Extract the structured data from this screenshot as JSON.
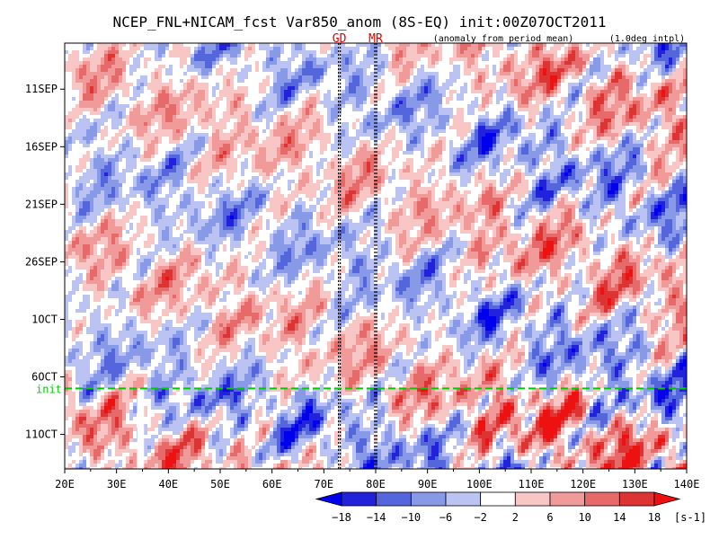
{
  "title": "NCEP_FNL+NICAM_fcst Var850_anom (8S-EQ) init:00Z07OCT2011",
  "subtitle_left": "(anomaly from period mean)",
  "subtitle_right": "(1.0deg intpl)",
  "markers": [
    {
      "label": "GD",
      "lon": 73,
      "color": "#e00000"
    },
    {
      "label": "MR",
      "lon": 80,
      "color": "#e00000"
    }
  ],
  "init_label": "init",
  "init_line_color": "#00cc00",
  "unit_label": "[s-1]",
  "chart_data": {
    "type": "heatmap",
    "title": "NCEP_FNL+NICAM_fcst Var850_anom (8S-EQ) init:00Z07OCT2011",
    "xlabel": "",
    "ylabel": "",
    "x_ticks": [
      "20E",
      "30E",
      "40E",
      "50E",
      "60E",
      "70E",
      "80E",
      "90E",
      "100E",
      "110E",
      "120E",
      "130E",
      "140E"
    ],
    "x_range": [
      20,
      140
    ],
    "y_ticks": [
      "11SEP",
      "16SEP",
      "21SEP",
      "26SEP",
      "1OCT",
      "6OCT",
      "11OCT"
    ],
    "y_tick_days": [
      -26,
      -21,
      -16,
      -11,
      -6,
      -1,
      4
    ],
    "y_range_days": [
      -30,
      7
    ],
    "init_day": 0,
    "colorbar_levels": [
      -18,
      -14,
      -10,
      -6,
      -2,
      2,
      6,
      10,
      14,
      18
    ],
    "colorbar_colors": [
      "#2222dd",
      "#5566dd",
      "#8899e8",
      "#bbc3f2",
      "#ffffff",
      "#f9c6c6",
      "#f09a9a",
      "#e66a6a",
      "#dd3333"
    ],
    "colorbar_extend_low": "#0000ee",
    "colorbar_extend_high": "#ee1111",
    "colorbar_unit": "[s-1]",
    "grid": false
  }
}
